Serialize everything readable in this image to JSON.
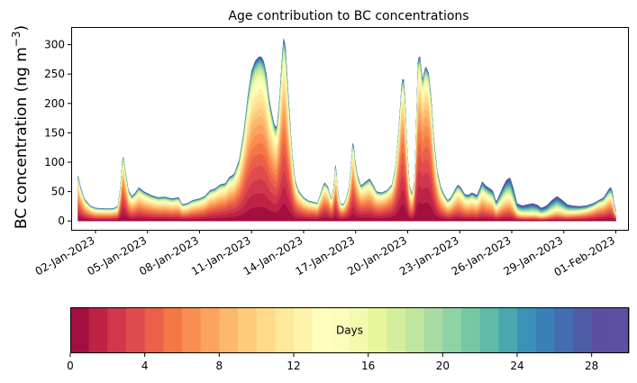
{
  "chart_data": {
    "type": "area",
    "title": "Age contribution to BC concentrations",
    "ylabel_main": "BC concentration (ng m",
    "ylabel_sup": "−3",
    "ylabel_close": ")",
    "xlabel": "",
    "ylim": [
      -15,
      330
    ],
    "yticks": [
      0,
      50,
      100,
      150,
      200,
      250,
      300
    ],
    "ytick_labels": [
      "0",
      "50",
      "100",
      "150",
      "200",
      "250",
      "300"
    ],
    "xlim_day": [
      -0.4,
      31.7
    ],
    "xticks_day": [
      1,
      4,
      7,
      10,
      13,
      16,
      19,
      22,
      25,
      28,
      31
    ],
    "xtick_labels": [
      "02-Jan-2023",
      "05-Jan-2023",
      "08-Jan-2023",
      "11-Jan-2023",
      "14-Jan-2023",
      "17-Jan-2023",
      "20-Jan-2023",
      "23-Jan-2023",
      "26-Jan-2023",
      "29-Jan-2023",
      "01-Feb-2023"
    ],
    "time_range_day": [
      0.0,
      31.0
    ],
    "total_profile": [
      [
        0.0,
        77
      ],
      [
        0.1,
        62
      ],
      [
        0.35,
        38
      ],
      [
        0.7,
        26
      ],
      [
        1.0,
        22
      ],
      [
        1.5,
        21
      ],
      [
        2.0,
        21
      ],
      [
        2.3,
        25
      ],
      [
        2.45,
        60
      ],
      [
        2.58,
        113
      ],
      [
        2.75,
        78
      ],
      [
        2.9,
        52
      ],
      [
        3.1,
        42
      ],
      [
        3.3,
        48
      ],
      [
        3.5,
        57
      ],
      [
        3.8,
        50
      ],
      [
        4.2,
        44
      ],
      [
        4.6,
        40
      ],
      [
        5.0,
        41
      ],
      [
        5.4,
        38
      ],
      [
        5.8,
        40
      ],
      [
        6.0,
        28
      ],
      [
        6.3,
        30
      ],
      [
        6.6,
        35
      ],
      [
        7.0,
        38
      ],
      [
        7.3,
        42
      ],
      [
        7.6,
        52
      ],
      [
        7.9,
        55
      ],
      [
        8.2,
        62
      ],
      [
        8.5,
        64
      ],
      [
        8.7,
        74
      ],
      [
        9.0,
        80
      ],
      [
        9.3,
        105
      ],
      [
        9.55,
        150
      ],
      [
        9.8,
        215
      ],
      [
        10.0,
        255
      ],
      [
        10.2,
        272
      ],
      [
        10.4,
        279
      ],
      [
        10.55,
        280
      ],
      [
        10.7,
        272
      ],
      [
        10.85,
        250
      ],
      [
        11.0,
        210
      ],
      [
        11.15,
        185
      ],
      [
        11.3,
        165
      ],
      [
        11.45,
        158
      ],
      [
        11.6,
        200
      ],
      [
        11.75,
        272
      ],
      [
        11.85,
        312
      ],
      [
        11.95,
        298
      ],
      [
        12.05,
        245
      ],
      [
        12.2,
        175
      ],
      [
        12.35,
        110
      ],
      [
        12.5,
        70
      ],
      [
        12.7,
        52
      ],
      [
        13.0,
        40
      ],
      [
        13.3,
        34
      ],
      [
        13.6,
        32
      ],
      [
        13.8,
        30
      ],
      [
        14.0,
        48
      ],
      [
        14.2,
        66
      ],
      [
        14.4,
        58
      ],
      [
        14.6,
        36
      ],
      [
        14.75,
        60
      ],
      [
        14.85,
        100
      ],
      [
        14.95,
        55
      ],
      [
        15.1,
        30
      ],
      [
        15.3,
        28
      ],
      [
        15.45,
        38
      ],
      [
        15.6,
        55
      ],
      [
        15.75,
        95
      ],
      [
        15.85,
        140
      ],
      [
        15.95,
        105
      ],
      [
        16.1,
        78
      ],
      [
        16.3,
        60
      ],
      [
        16.55,
        66
      ],
      [
        16.8,
        72
      ],
      [
        17.0,
        62
      ],
      [
        17.2,
        50
      ],
      [
        17.5,
        48
      ],
      [
        17.8,
        52
      ],
      [
        18.1,
        62
      ],
      [
        18.3,
        90
      ],
      [
        18.5,
        160
      ],
      [
        18.65,
        230
      ],
      [
        18.75,
        248
      ],
      [
        18.85,
        205
      ],
      [
        18.95,
        130
      ],
      [
        19.1,
        60
      ],
      [
        19.25,
        45
      ],
      [
        19.4,
        70
      ],
      [
        19.5,
        170
      ],
      [
        19.6,
        275
      ],
      [
        19.7,
        282
      ],
      [
        19.8,
        250
      ],
      [
        19.88,
        240
      ],
      [
        19.95,
        254
      ],
      [
        20.05,
        263
      ],
      [
        20.2,
        252
      ],
      [
        20.35,
        210
      ],
      [
        20.5,
        140
      ],
      [
        20.7,
        85
      ],
      [
        20.9,
        58
      ],
      [
        21.1,
        45
      ],
      [
        21.3,
        35
      ],
      [
        21.5,
        40
      ],
      [
        21.7,
        52
      ],
      [
        21.9,
        62
      ],
      [
        22.1,
        55
      ],
      [
        22.3,
        45
      ],
      [
        22.5,
        44
      ],
      [
        22.7,
        48
      ],
      [
        23.0,
        44
      ],
      [
        23.15,
        55
      ],
      [
        23.3,
        67
      ],
      [
        23.5,
        60
      ],
      [
        23.7,
        56
      ],
      [
        23.9,
        52
      ],
      [
        24.1,
        32
      ],
      [
        24.3,
        45
      ],
      [
        24.55,
        62
      ],
      [
        24.7,
        70
      ],
      [
        24.9,
        74
      ],
      [
        25.1,
        55
      ],
      [
        25.3,
        30
      ],
      [
        25.6,
        26
      ],
      [
        25.9,
        28
      ],
      [
        26.2,
        30
      ],
      [
        26.5,
        27
      ],
      [
        26.7,
        22
      ],
      [
        27.0,
        26
      ],
      [
        27.3,
        35
      ],
      [
        27.6,
        42
      ],
      [
        27.9,
        36
      ],
      [
        28.2,
        28
      ],
      [
        28.5,
        26
      ],
      [
        28.9,
        25
      ],
      [
        29.3,
        26
      ],
      [
        29.7,
        30
      ],
      [
        30.0,
        35
      ],
      [
        30.3,
        40
      ],
      [
        30.55,
        52
      ],
      [
        30.7,
        58
      ],
      [
        30.8,
        50
      ],
      [
        30.9,
        28
      ],
      [
        31.0,
        18
      ]
    ],
    "age_layer_shares": [
      [
        0.085,
        0.085,
        0.085,
        0.085,
        0.072,
        0.066,
        0.06,
        0.055,
        0.052,
        0.048,
        0.045,
        0.04,
        0.035,
        0.03,
        0.026,
        0.022,
        0.019,
        0.016,
        0.014,
        0.012,
        0.01,
        0.009,
        0.008,
        0.007,
        0.006,
        0.005,
        0.005,
        0.004,
        0.004,
        0.004
      ],
      [
        0.13,
        0.11,
        0.1,
        0.092,
        0.085,
        0.076,
        0.066,
        0.057,
        0.049,
        0.042,
        0.036,
        0.03,
        0.025,
        0.021,
        0.018,
        0.015,
        0.012,
        0.01,
        0.008,
        0.007,
        0.006,
        0.005,
        0.004,
        0.004,
        0.003,
        0.003,
        0.002,
        0.002,
        0.002,
        0.002
      ],
      [
        0.05,
        0.05,
        0.05,
        0.05,
        0.05,
        0.052,
        0.054,
        0.055,
        0.054,
        0.052,
        0.05,
        0.046,
        0.042,
        0.038,
        0.034,
        0.03,
        0.027,
        0.024,
        0.021,
        0.019,
        0.017,
        0.015,
        0.013,
        0.012,
        0.011,
        0.01,
        0.009,
        0.008,
        0.008,
        0.007
      ],
      [
        0.005,
        0.005,
        0.005,
        0.005,
        0.005,
        0.006,
        0.007,
        0.008,
        0.01,
        0.012,
        0.014,
        0.016,
        0.018,
        0.021,
        0.024,
        0.028,
        0.032,
        0.036,
        0.04,
        0.044,
        0.048,
        0.052,
        0.054,
        0.055,
        0.055,
        0.054,
        0.052,
        0.05,
        0.048,
        0.046
      ]
    ],
    "age_mix_weights": [
      [
        0.0,
        [
          0,
          0.55,
          0.45,
          0
        ]
      ],
      [
        1.0,
        [
          0,
          0.25,
          0.75,
          0
        ]
      ],
      [
        2.3,
        [
          0,
          0.3,
          0.7,
          0
        ]
      ],
      [
        2.6,
        [
          0,
          0.8,
          0.2,
          0
        ]
      ],
      [
        3.0,
        [
          0,
          0.35,
          0.65,
          0
        ]
      ],
      [
        6.0,
        [
          0,
          0.25,
          0.75,
          0
        ]
      ],
      [
        8.0,
        [
          0.7,
          0.1,
          0.2,
          0
        ]
      ],
      [
        9.5,
        [
          1,
          0,
          0,
          0
        ]
      ],
      [
        11.0,
        [
          1,
          0,
          0,
          0
        ]
      ],
      [
        11.8,
        [
          0.7,
          0.3,
          0,
          0
        ]
      ],
      [
        12.4,
        [
          0.7,
          0.1,
          0.2,
          0
        ]
      ],
      [
        14.8,
        [
          0.3,
          0.4,
          0.3,
          0
        ]
      ],
      [
        15.8,
        [
          0.6,
          0.3,
          0.1,
          0
        ]
      ],
      [
        17.0,
        [
          0.4,
          0.2,
          0.4,
          0
        ]
      ],
      [
        18.7,
        [
          0.2,
          0.8,
          0,
          0
        ]
      ],
      [
        19.1,
        [
          0.1,
          0.3,
          0.6,
          0
        ]
      ],
      [
        19.7,
        [
          0.3,
          0.7,
          0,
          0
        ]
      ],
      [
        20.2,
        [
          0.2,
          0.8,
          0,
          0
        ]
      ],
      [
        20.8,
        [
          0.1,
          0.3,
          0.6,
          0
        ]
      ],
      [
        22.0,
        [
          0,
          0.2,
          0.8,
          0
        ]
      ],
      [
        24.0,
        [
          0,
          0.2,
          0.6,
          0.2
        ]
      ],
      [
        26.0,
        [
          0,
          0.1,
          0.3,
          0.6
        ]
      ],
      [
        28.0,
        [
          0,
          0.1,
          0.4,
          0.5
        ]
      ],
      [
        30.0,
        [
          0,
          0.5,
          0.4,
          0.1
        ]
      ],
      [
        31.0,
        [
          0,
          0.4,
          0.4,
          0.2
        ]
      ]
    ],
    "colorbar": {
      "label": "Days",
      "range": [
        0,
        30
      ],
      "ticks": [
        0,
        4,
        8,
        12,
        16,
        20,
        24,
        28
      ],
      "tick_labels": [
        "0",
        "4",
        "8",
        "12",
        "16",
        "20",
        "24",
        "28"
      ],
      "colors": [
        "#a3103f",
        "#be2346",
        "#d2364c",
        "#e04b4e",
        "#eb6048",
        "#f47746",
        "#f98d52",
        "#fca35f",
        "#fdb86d",
        "#fecb7d",
        "#fedb8b",
        "#fee89a",
        "#fff2aa",
        "#fffebe",
        "#fbfdba",
        "#f3faae",
        "#e7f59b",
        "#d5ee9b",
        "#c1e69d",
        "#a9dca2",
        "#8fd2a4",
        "#76c8a4",
        "#5fbaa8",
        "#4aa7af",
        "#3b92b8",
        "#3980b8",
        "#436db0",
        "#4e5ca6",
        "#5c4fa0",
        "#5e4fa2"
      ]
    }
  }
}
